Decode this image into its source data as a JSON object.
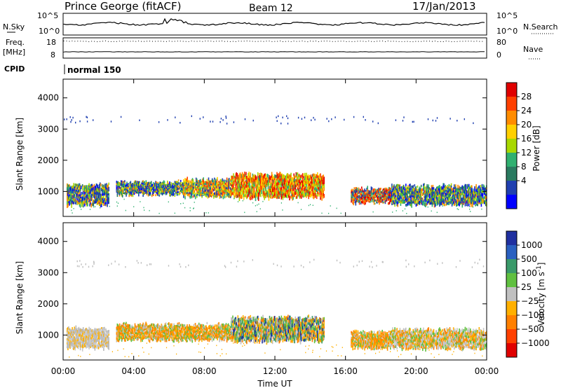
{
  "header": {
    "station": "Prince George (fitACF)",
    "beam": "Beam 12",
    "date": "17/Jan/2013"
  },
  "summary": {
    "nsky_label": "N.Sky",
    "nsky_ticks": [
      "10^5",
      "10^0"
    ],
    "nsearch_label": "N.Search",
    "nsearch_ticks": [
      "10^5",
      "10^0"
    ],
    "freq_label": "Freq.",
    "freq_unit": "[MHz]",
    "freq_ticks": [
      "18",
      "8"
    ],
    "nave_label": "Nave",
    "nave_ticks": [
      "80",
      "0"
    ],
    "cpid_label": "CPID",
    "cpid_value": "normal 150"
  },
  "chart_data": [
    {
      "type": "heatmap",
      "name": "power",
      "xlabel": "",
      "ylabel": "Slant Range [km]",
      "xlim_hours": [
        0,
        24
      ],
      "ylim": [
        200,
        4600
      ],
      "yticks": [
        "4000",
        "3000",
        "2000",
        "1000"
      ],
      "xticks": [
        "00:00",
        "04:00",
        "08:00",
        "12:00",
        "16:00",
        "20:00",
        "00:00"
      ],
      "colorbar": {
        "label": "Power [dB]",
        "ticks": [
          "28",
          "24",
          "20",
          "16",
          "12",
          "8",
          "4"
        ],
        "colors": [
          "#e00000",
          "#ff4000",
          "#ff8c00",
          "#ffd000",
          "#a8d800",
          "#30b070",
          "#2a7a60",
          "#2040b0",
          "#0000ff"
        ]
      },
      "bands": [
        {
          "t0": 0.2,
          "t1": 2.6,
          "r0": 650,
          "r1": 1300,
          "level": "mixed-low"
        },
        {
          "t0": 3.0,
          "t1": 6.8,
          "r0": 950,
          "r1": 1350,
          "level": "mixed-low"
        },
        {
          "t0": 6.8,
          "t1": 9.5,
          "r0": 900,
          "r1": 1450,
          "level": "mixed-mid"
        },
        {
          "t0": 9.5,
          "t1": 14.8,
          "r0": 900,
          "r1": 1650,
          "level": "high"
        },
        {
          "t0": 16.3,
          "t1": 18.6,
          "r0": 700,
          "r1": 1150,
          "level": "mixed-high"
        },
        {
          "t0": 18.6,
          "t1": 24.0,
          "r0": 650,
          "r1": 1250,
          "level": "mixed-low"
        }
      ]
    },
    {
      "type": "heatmap",
      "name": "velocity",
      "xlabel": "Time UT",
      "ylabel": "Slant Range [km]",
      "xlim_hours": [
        0,
        24
      ],
      "ylim": [
        200,
        4600
      ],
      "yticks": [
        "4000",
        "3000",
        "2000",
        "1000"
      ],
      "xticks": [
        "00:00",
        "04:00",
        "08:00",
        "12:00",
        "16:00",
        "20:00",
        "00:00"
      ],
      "colorbar": {
        "label": "Velocity [m s^-1]",
        "ticks": [
          "1000",
          "500",
          "100",
          "25",
          "−25",
          "−100",
          "−500",
          "−1000"
        ],
        "colors": [
          "#2030a0",
          "#2a60c0",
          "#3a9a6a",
          "#60c040",
          "#c0c0c0",
          "#ffb000",
          "#ff8000",
          "#ff4000",
          "#e00000"
        ]
      },
      "bands": [
        {
          "t0": 0.2,
          "t1": 2.6,
          "r0": 650,
          "r1": 1300,
          "level": "grey"
        },
        {
          "t0": 3.0,
          "t1": 9.5,
          "r0": 900,
          "r1": 1400,
          "level": "orange"
        },
        {
          "t0": 9.5,
          "t1": 14.8,
          "r0": 900,
          "r1": 1650,
          "level": "orange-green"
        },
        {
          "t0": 16.3,
          "t1": 18.6,
          "r0": 650,
          "r1": 1150,
          "level": "orange"
        },
        {
          "t0": 18.6,
          "t1": 24.0,
          "r0": 650,
          "r1": 1250,
          "level": "grey-orange"
        }
      ]
    }
  ]
}
